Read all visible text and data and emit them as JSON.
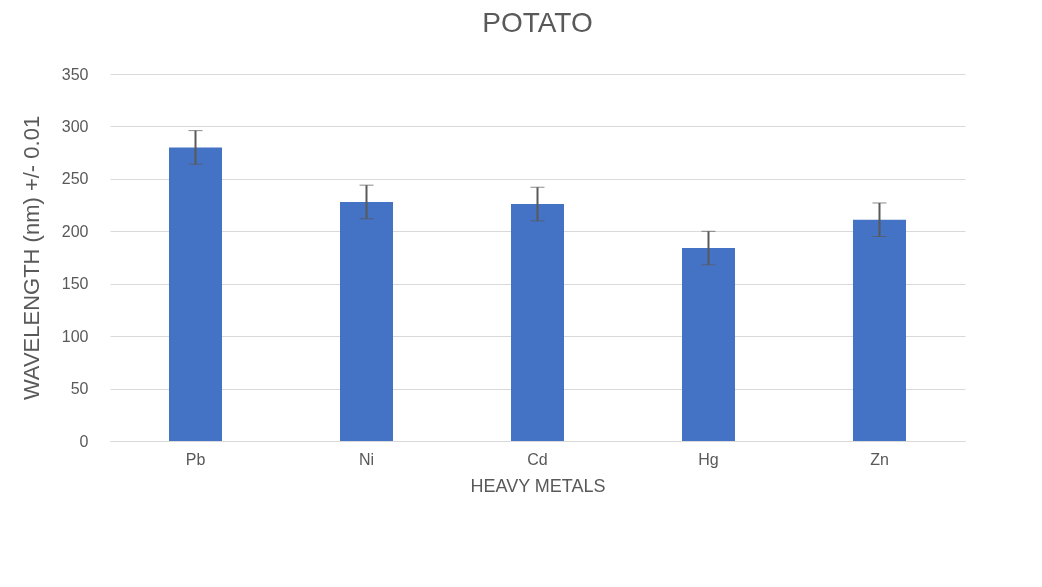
{
  "chart_data": {
    "type": "bar",
    "title": "POTATO",
    "xlabel": "HEAVY METALS",
    "ylabel": "WAVELENGTH (nm) +/- 0.01",
    "categories": [
      "Pb",
      "Ni",
      "Cd",
      "Hg",
      "Zn"
    ],
    "values": [
      280,
      228,
      226,
      184,
      211
    ],
    "errors": [
      16,
      16,
      16,
      16,
      16
    ],
    "color": "#4472c4",
    "ylim": [
      0,
      350
    ],
    "yticks": [
      0,
      50,
      100,
      150,
      200,
      250,
      300,
      350
    ],
    "grid": "y"
  }
}
